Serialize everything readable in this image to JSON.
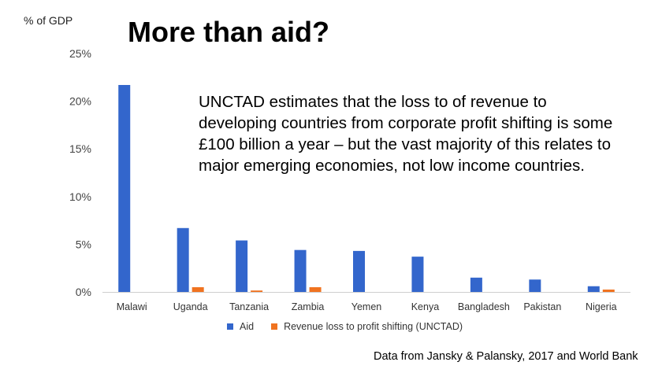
{
  "chart_data": {
    "type": "bar",
    "title": "More than aid?",
    "ylabel": "% of GDP",
    "xlabel": "",
    "ylim": [
      0,
      25
    ],
    "yticks": [
      0,
      5,
      10,
      15,
      20,
      25
    ],
    "ytick_labels": [
      "0%",
      "5%",
      "10%",
      "15%",
      "20%",
      "25%"
    ],
    "categories": [
      "Malawi",
      "Uganda",
      "Tanzania",
      "Zambia",
      "Yemen",
      "Kenya",
      "Bangladesh",
      "Pakistan",
      "Nigeria"
    ],
    "series": [
      {
        "name": "Aid",
        "color": "#3366cc",
        "values": [
          21.7,
          6.7,
          5.4,
          4.4,
          4.3,
          3.7,
          1.5,
          1.3,
          0.6
        ]
      },
      {
        "name": "Revenue loss to profit shifting (UNCTAD)",
        "color": "#f07320",
        "values": [
          0,
          0.5,
          0.15,
          0.5,
          0,
          0,
          0,
          0,
          0.25
        ]
      }
    ],
    "legend_position": "bottom",
    "grid": false,
    "annotation": "UNCTAD estimates that the loss to of revenue to developing countries from corporate profit shifting is some £100 billion a year – but the vast majority of this relates to major emerging economies, not low income countries.",
    "source": "Data from Jansky & Palansky, 2017 and World Bank"
  }
}
